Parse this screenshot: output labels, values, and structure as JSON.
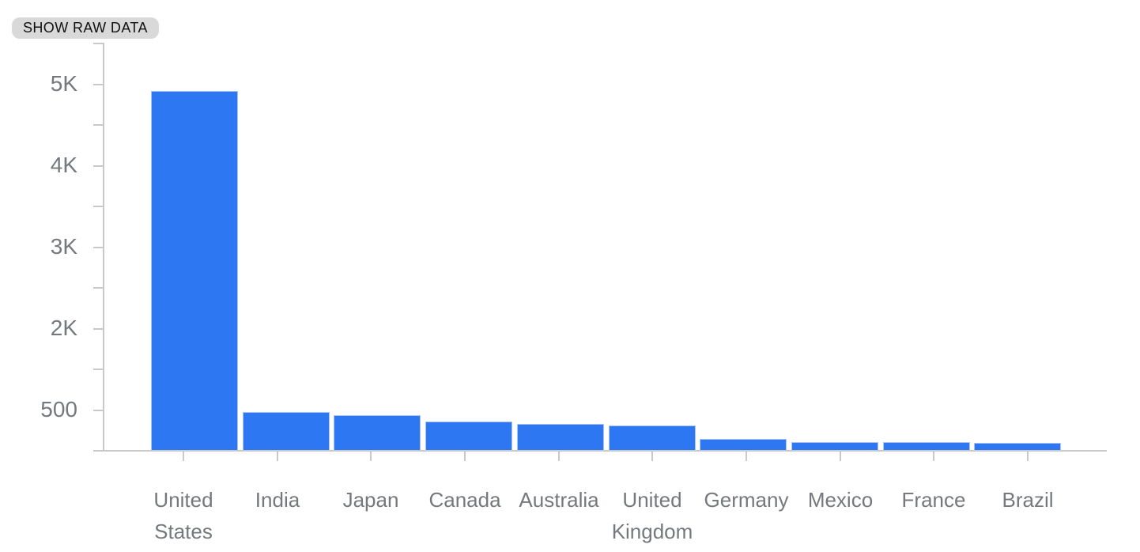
{
  "ui": {
    "show_raw_data": {
      "label": "SHOW RAW DATA"
    }
  },
  "colors": {
    "bar": "#2e77f2",
    "bar_border": "#aac4f4",
    "axis": "#c9c9c9",
    "tick_label": "#75787c",
    "chip_bg": "#d9d9d9",
    "chip_text": "#121212"
  },
  "chart_data": {
    "type": "bar",
    "title": "",
    "xlabel": "",
    "ylabel": "",
    "categories": [
      "United States",
      "India",
      "Japan",
      "Canada",
      "Australia",
      "United Kingdom",
      "Germany",
      "Mexico",
      "France",
      "Brazil"
    ],
    "values": [
      4900,
      520,
      480,
      390,
      360,
      330,
      155,
      110,
      110,
      100
    ],
    "x_label_lines": [
      [
        "United",
        "States"
      ],
      [
        "India"
      ],
      [
        "Japan"
      ],
      [
        "Canada"
      ],
      [
        "Australia"
      ],
      [
        "United",
        "Kingdom"
      ],
      [
        "Germany"
      ],
      [
        "Mexico"
      ],
      [
        "France"
      ],
      [
        "Brazil"
      ]
    ],
    "y_axis": {
      "tick_labels_top_to_bottom": [
        "5K",
        "4K",
        "3K",
        "2K",
        "500"
      ],
      "minor_ticks_between_labels": true,
      "top_value": 5000,
      "baseline_value": 0
    },
    "grid": "off",
    "legend": "none",
    "bar_color": "#2e77f2"
  }
}
